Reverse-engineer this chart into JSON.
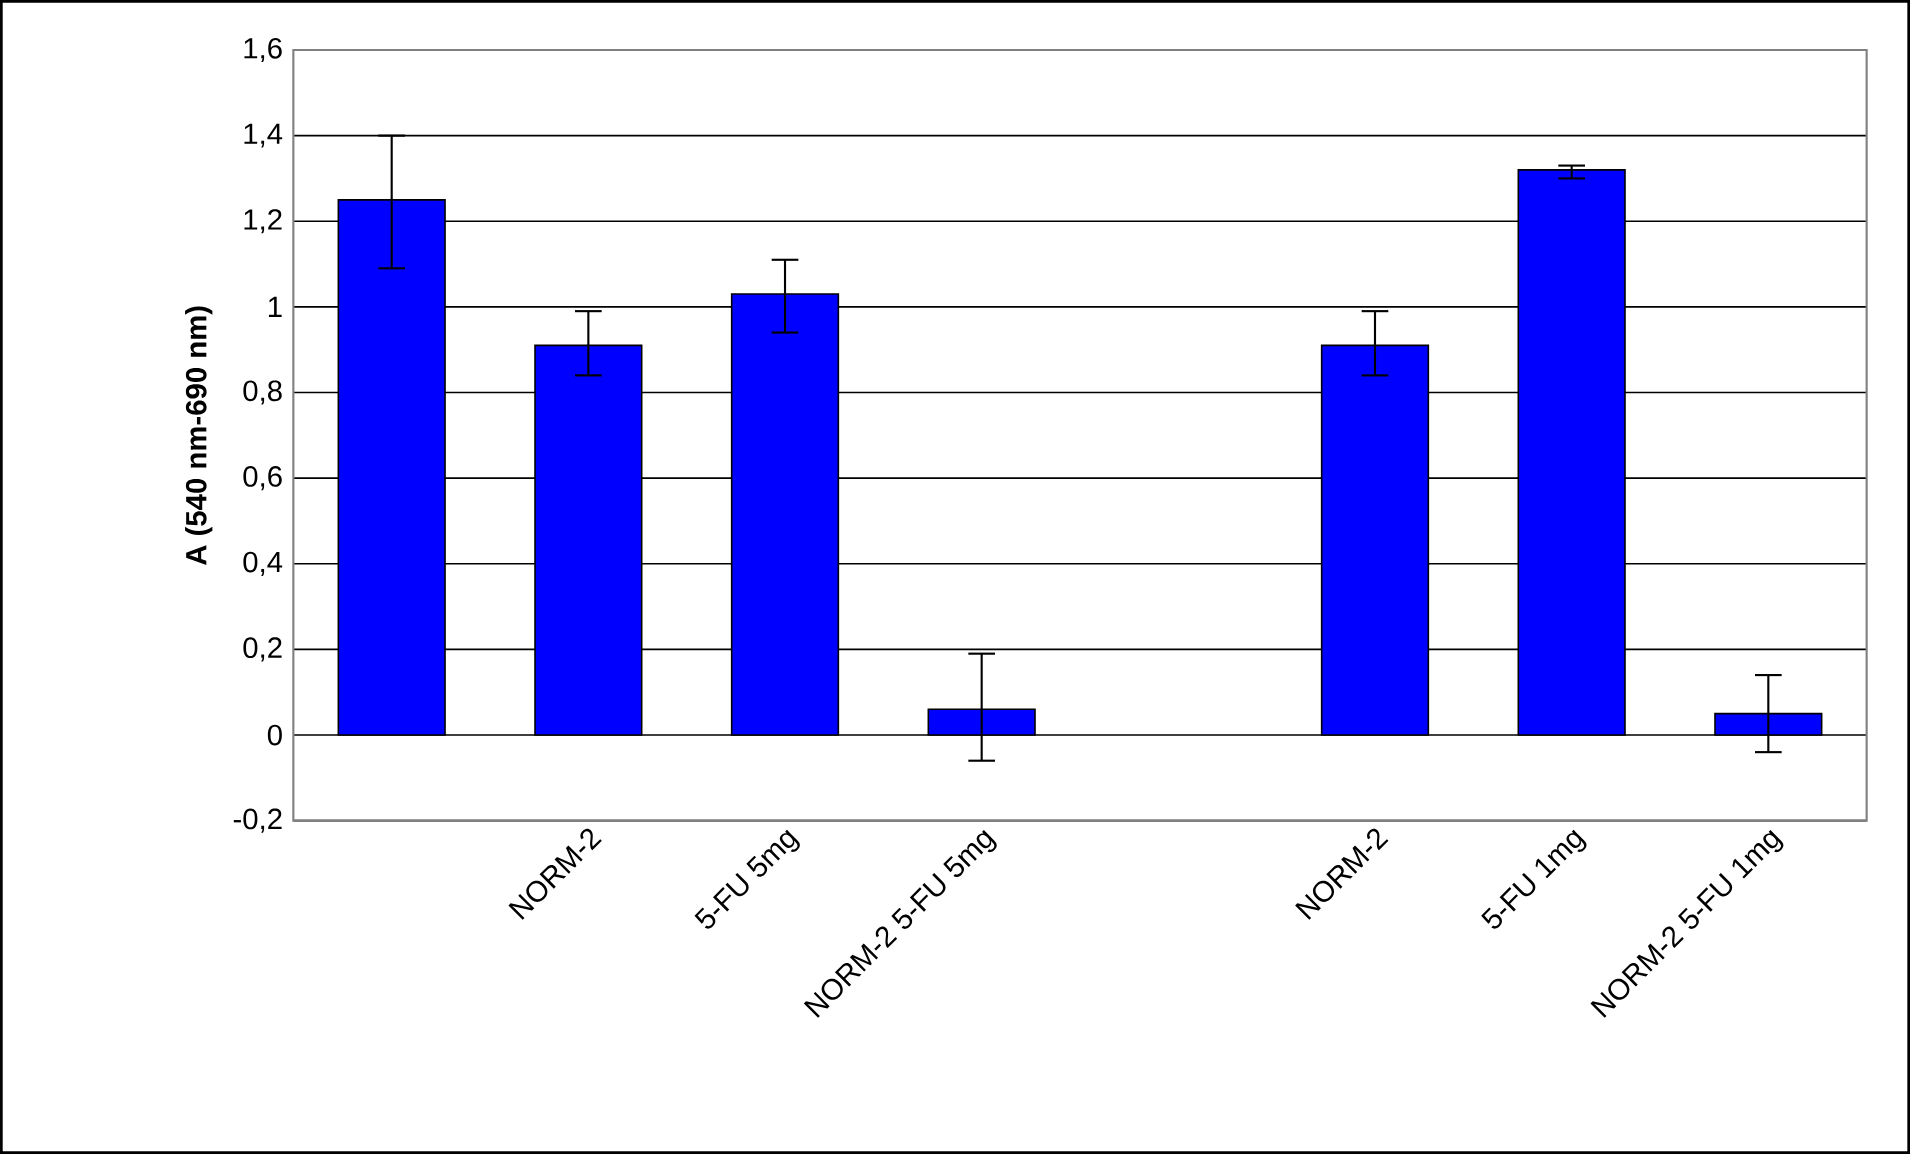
{
  "chart_data": {
    "type": "bar",
    "ylabel": "A (540 nm-690 nm)",
    "categories": [
      null,
      "NORM-2",
      "5-FU 5mg",
      "NORM-2 5-FU 5mg",
      null,
      "NORM-2",
      "5-FU 1mg",
      "NORM-2 5-FU 1mg"
    ],
    "values": [
      1.25,
      0.91,
      1.03,
      0.06,
      null,
      0.91,
      1.32,
      0.05
    ],
    "errors": [
      [
        1.09,
        1.4
      ],
      [
        0.84,
        0.99
      ],
      [
        0.94,
        1.11
      ],
      [
        -0.06,
        0.19
      ],
      null,
      [
        0.84,
        0.99
      ],
      [
        1.3,
        1.33
      ],
      [
        -0.04,
        0.14
      ]
    ],
    "color": "#0000ff",
    "ylim": [
      -0.2,
      1.6
    ],
    "yticks": [
      {
        "value": -0.2,
        "label": "-0,2"
      },
      {
        "value": 0,
        "label": "0"
      },
      {
        "value": 0.2,
        "label": "0,2"
      },
      {
        "value": 0.4,
        "label": "0,4"
      },
      {
        "value": 0.6,
        "label": "0,6"
      },
      {
        "value": 0.8,
        "label": "0,8"
      },
      {
        "value": 1,
        "label": "1"
      },
      {
        "value": 1.2,
        "label": "1,2"
      },
      {
        "value": 1.4,
        "label": "1,4"
      },
      {
        "value": 1.6,
        "label": "1,6"
      }
    ],
    "grid": "y"
  }
}
